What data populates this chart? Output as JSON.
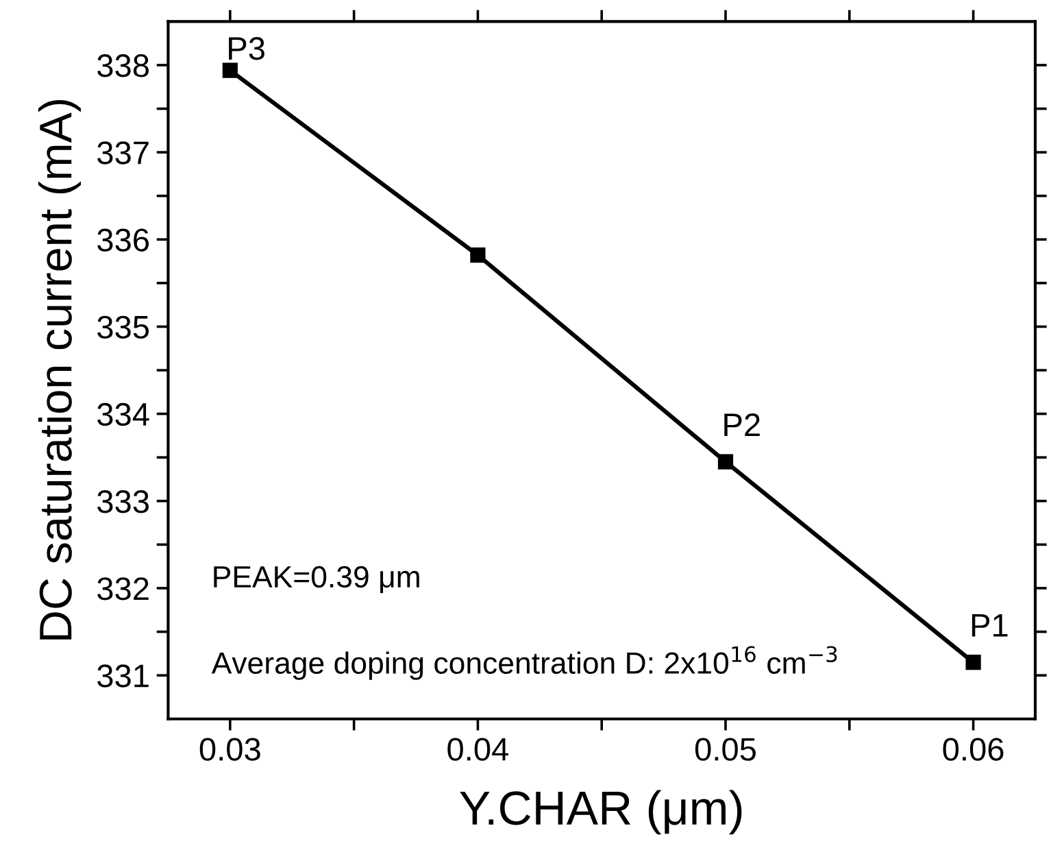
{
  "chart_data": {
    "type": "line",
    "xlabel": "Y.CHAR (μm)",
    "ylabel": "DC saturation current (mA)",
    "x": [
      0.03,
      0.04,
      0.05,
      0.06
    ],
    "series": [
      {
        "color": "#000000",
        "values": [
          337.94,
          335.82,
          333.45,
          331.15
        ]
      }
    ],
    "marker": "square",
    "line_style": "solid",
    "grid": false,
    "legend": false,
    "xlim": [
      0.0275,
      0.0625
    ],
    "ylim": [
      330.5,
      338.5
    ],
    "xticks": [
      0.03,
      {
        "value": 0.035,
        "label": null
      },
      0.04,
      {
        "value": 0.045,
        "label": null
      },
      0.05,
      {
        "value": 0.055,
        "label": null
      },
      0.06
    ],
    "yticks": [
      331,
      {
        "value": 331.5,
        "label": null
      },
      332,
      {
        "value": 332.5,
        "label": null
      },
      333,
      {
        "value": 333.5,
        "label": null
      },
      334,
      {
        "value": 334.5,
        "label": null
      },
      335,
      {
        "value": 335.5,
        "label": null
      },
      336,
      {
        "value": 336.5,
        "label": null
      },
      337,
      {
        "value": 337.5,
        "label": null
      },
      338
    ],
    "annotations": [
      {
        "text": "P3",
        "x": 0.03,
        "y": 337.94
      },
      {
        "text": "P2",
        "x": 0.05,
        "y": 333.45
      },
      {
        "text": "P1",
        "x": 0.06,
        "y": 331.15
      },
      "PEAK=0.39 μm",
      "Average doping concentration D: 2x10$^{16}$ cm$^{−3}$"
    ]
  }
}
